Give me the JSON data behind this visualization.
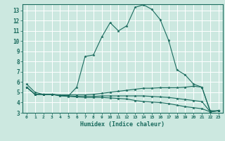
{
  "xlabel": "Humidex (Indice chaleur)",
  "background_color": "#cce8e0",
  "line_color": "#1a6b5e",
  "grid_color": "#ffffff",
  "xlim": [
    -0.5,
    23.5
  ],
  "ylim": [
    3,
    13.6
  ],
  "yticks": [
    3,
    4,
    5,
    6,
    7,
    8,
    9,
    10,
    11,
    12,
    13
  ],
  "xticks": [
    0,
    1,
    2,
    3,
    4,
    5,
    6,
    7,
    8,
    9,
    10,
    11,
    12,
    13,
    14,
    15,
    16,
    17,
    18,
    19,
    20,
    21,
    22,
    23
  ],
  "series": [
    {
      "x": [
        0,
        1,
        2,
        3,
        4,
        5,
        6,
        7,
        8,
        9,
        10,
        11,
        12,
        13,
        14,
        15,
        16,
        17,
        18,
        19,
        20,
        21,
        22,
        23
      ],
      "y": [
        5.8,
        5.0,
        4.8,
        4.8,
        4.7,
        4.65,
        5.5,
        8.5,
        8.65,
        10.4,
        11.8,
        11.0,
        11.5,
        13.3,
        13.55,
        13.1,
        12.1,
        10.1,
        7.2,
        6.7,
        5.8,
        5.5,
        3.1,
        3.2
      ]
    },
    {
      "x": [
        0,
        1,
        2,
        3,
        4,
        5,
        6,
        7,
        8,
        9,
        10,
        11,
        12,
        13,
        14,
        15,
        16,
        17,
        18,
        19,
        20,
        21,
        22,
        23
      ],
      "y": [
        5.5,
        4.8,
        4.8,
        4.8,
        4.75,
        4.75,
        4.75,
        4.75,
        4.8,
        4.9,
        5.0,
        5.1,
        5.2,
        5.3,
        5.4,
        5.4,
        5.45,
        5.45,
        5.45,
        5.5,
        5.6,
        5.5,
        3.2,
        3.2
      ]
    },
    {
      "x": [
        0,
        1,
        2,
        3,
        4,
        5,
        6,
        7,
        8,
        9,
        10,
        11,
        12,
        13,
        14,
        15,
        16,
        17,
        18,
        19,
        20,
        21,
        22,
        23
      ],
      "y": [
        5.5,
        4.8,
        4.8,
        4.8,
        4.7,
        4.65,
        4.6,
        4.6,
        4.6,
        4.65,
        4.65,
        4.65,
        4.65,
        4.65,
        4.65,
        4.6,
        4.55,
        4.5,
        4.4,
        4.3,
        4.2,
        4.1,
        3.1,
        3.2
      ]
    },
    {
      "x": [
        0,
        1,
        2,
        3,
        4,
        5,
        6,
        7,
        8,
        9,
        10,
        11,
        12,
        13,
        14,
        15,
        16,
        17,
        18,
        19,
        20,
        21,
        22,
        23
      ],
      "y": [
        5.5,
        4.8,
        4.8,
        4.8,
        4.65,
        4.6,
        4.55,
        4.5,
        4.5,
        4.5,
        4.45,
        4.4,
        4.35,
        4.2,
        4.1,
        4.05,
        4.0,
        3.9,
        3.75,
        3.6,
        3.5,
        3.4,
        3.1,
        3.2
      ]
    }
  ]
}
